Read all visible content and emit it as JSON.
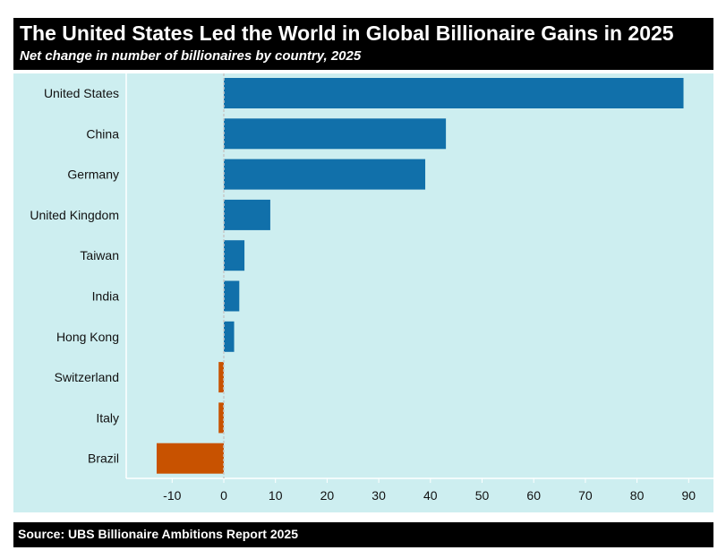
{
  "chart_data": {
    "type": "bar",
    "orientation": "horizontal",
    "title": "The United States Led the World in Global Billionaire Gains in 2025",
    "subtitle": "Net change in number of billionaires by country, 2025",
    "categories": [
      "United States",
      "China",
      "Germany",
      "United Kingdom",
      "Taiwan",
      "India",
      "Hong Kong",
      "Switzerland",
      "Italy",
      "Brazil"
    ],
    "values": [
      89,
      43,
      39,
      9,
      4,
      3,
      2,
      -1,
      -1,
      -13
    ],
    "xlim": [
      -18,
      95
    ],
    "xticks": [
      -10,
      0,
      10,
      20,
      30,
      40,
      50,
      60,
      70,
      80,
      90
    ],
    "xlabel": "",
    "ylabel": "",
    "grid": false,
    "zero_line": "dotted",
    "source": "Source: UBS Billionaire Ambitions Report 2025",
    "colors": {
      "positive": "#1170aa",
      "negative": "#c85200",
      "panel": "#cdeef0",
      "header": "#000000"
    }
  }
}
